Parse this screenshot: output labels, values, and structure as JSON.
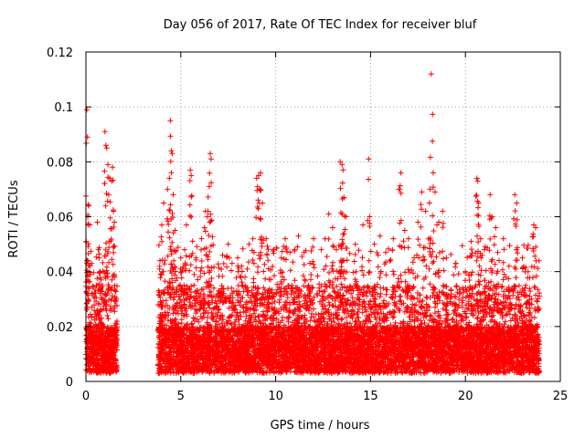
{
  "chart_data": {
    "type": "scatter",
    "title": "Day 056 of 2017, Rate Of TEC Index for receiver bluf",
    "xlabel": "GPS time / hours",
    "ylabel": "ROTI / TECUs",
    "xlim": [
      0,
      25
    ],
    "ylim": [
      0,
      0.12
    ],
    "x_ticks": [
      0,
      5,
      10,
      15,
      20,
      25
    ],
    "x_tick_labels": [
      "0",
      "5",
      "10",
      "15",
      "20",
      "25"
    ],
    "y_ticks": [
      0,
      0.02,
      0.04,
      0.06,
      0.08,
      0.1,
      0.12
    ],
    "y_tick_labels": [
      "0",
      "0.02",
      "0.04",
      "0.06",
      "0.08",
      "0.1",
      "0.12"
    ],
    "grid": true,
    "marker": "+",
    "color": "#ff0000",
    "data_gaps_hours": [
      [
        1.7,
        3.8
      ]
    ],
    "series": [
      {
        "points": [
          [
            0.05,
            0.099
          ],
          [
            0.08,
            0.089
          ],
          [
            0.1,
            0.06
          ],
          [
            0.15,
            0.064
          ],
          [
            0.2,
            0.057
          ],
          [
            0.3,
            0.043
          ],
          [
            0.6,
            0.058
          ],
          [
            0.65,
            0.048
          ],
          [
            0.7,
            0.045
          ],
          [
            0.75,
            0.04
          ],
          [
            0.8,
            0.037
          ],
          [
            1.0,
            0.091
          ],
          [
            1.05,
            0.086
          ],
          [
            1.1,
            0.085
          ],
          [
            1.2,
            0.068
          ],
          [
            1.25,
            0.074
          ],
          [
            1.35,
            0.073
          ],
          [
            1.4,
            0.078
          ],
          [
            1.45,
            0.062
          ],
          [
            1.5,
            0.058
          ],
          [
            1.55,
            0.033
          ],
          [
            3.9,
            0.044
          ],
          [
            4.0,
            0.057
          ],
          [
            4.1,
            0.065
          ],
          [
            4.3,
            0.07
          ],
          [
            4.4,
            0.074
          ],
          [
            4.45,
            0.095
          ],
          [
            4.5,
            0.084
          ],
          [
            4.55,
            0.083
          ],
          [
            4.6,
            0.068
          ],
          [
            4.7,
            0.055
          ],
          [
            5.0,
            0.045
          ],
          [
            5.2,
            0.048
          ],
          [
            5.3,
            0.057
          ],
          [
            5.5,
            0.077
          ],
          [
            5.55,
            0.075
          ],
          [
            5.8,
            0.045
          ],
          [
            6.1,
            0.052
          ],
          [
            6.3,
            0.062
          ],
          [
            6.4,
            0.06
          ],
          [
            6.55,
            0.083
          ],
          [
            6.6,
            0.081
          ],
          [
            6.5,
            0.071
          ],
          [
            7.2,
            0.046
          ],
          [
            7.5,
            0.05
          ],
          [
            7.7,
            0.043
          ],
          [
            8.0,
            0.045
          ],
          [
            8.2,
            0.042
          ],
          [
            8.5,
            0.041
          ],
          [
            8.6,
            0.05
          ],
          [
            8.8,
            0.052
          ],
          [
            9.0,
            0.074
          ],
          [
            9.1,
            0.075
          ],
          [
            9.2,
            0.076
          ],
          [
            9.15,
            0.07
          ],
          [
            9.3,
            0.065
          ],
          [
            9.5,
            0.052
          ],
          [
            9.9,
            0.048
          ],
          [
            10.3,
            0.045
          ],
          [
            10.5,
            0.052
          ],
          [
            11.0,
            0.048
          ],
          [
            11.2,
            0.053
          ],
          [
            11.5,
            0.047
          ],
          [
            11.8,
            0.043
          ],
          [
            12.0,
            0.052
          ],
          [
            12.4,
            0.048
          ],
          [
            12.6,
            0.052
          ],
          [
            12.8,
            0.061
          ],
          [
            13.0,
            0.056
          ],
          [
            13.2,
            0.048
          ],
          [
            13.4,
            0.08
          ],
          [
            13.5,
            0.079
          ],
          [
            13.55,
            0.077
          ],
          [
            13.6,
            0.067
          ],
          [
            13.7,
            0.06
          ],
          [
            14.2,
            0.05
          ],
          [
            14.6,
            0.057
          ],
          [
            14.9,
            0.081
          ],
          [
            14.95,
            0.06
          ],
          [
            15.2,
            0.05
          ],
          [
            15.5,
            0.053
          ],
          [
            15.8,
            0.047
          ],
          [
            16.2,
            0.052
          ],
          [
            16.5,
            0.07
          ],
          [
            16.6,
            0.076
          ],
          [
            16.8,
            0.055
          ],
          [
            17.0,
            0.052
          ],
          [
            17.3,
            0.045
          ],
          [
            17.5,
            0.058
          ],
          [
            17.7,
            0.069
          ],
          [
            17.9,
            0.062
          ],
          [
            18.1,
            0.065
          ],
          [
            18.2,
            0.112
          ],
          [
            18.3,
            0.076
          ],
          [
            18.4,
            0.069
          ],
          [
            18.5,
            0.057
          ],
          [
            18.6,
            0.058
          ],
          [
            18.8,
            0.062
          ],
          [
            19.0,
            0.045
          ],
          [
            19.5,
            0.043
          ],
          [
            20.0,
            0.04
          ],
          [
            20.3,
            0.051
          ],
          [
            20.6,
            0.074
          ],
          [
            20.65,
            0.073
          ],
          [
            20.7,
            0.065
          ],
          [
            20.8,
            0.052
          ],
          [
            21.0,
            0.048
          ],
          [
            21.3,
            0.068
          ],
          [
            21.4,
            0.06
          ],
          [
            21.6,
            0.056
          ],
          [
            21.7,
            0.047
          ],
          [
            22.0,
            0.052
          ],
          [
            22.3,
            0.042
          ],
          [
            22.6,
            0.068
          ],
          [
            22.7,
            0.065
          ],
          [
            23.0,
            0.045
          ],
          [
            23.3,
            0.04
          ],
          [
            23.6,
            0.057
          ],
          [
            23.7,
            0.056
          ]
        ],
        "dense_band": {
          "segments_hours": [
            [
              0.0,
              1.65
            ],
            [
              3.8,
              23.9
            ]
          ],
          "base_low": 0.003,
          "base_high": 0.02,
          "spike_max": 0.05
        }
      }
    ]
  }
}
